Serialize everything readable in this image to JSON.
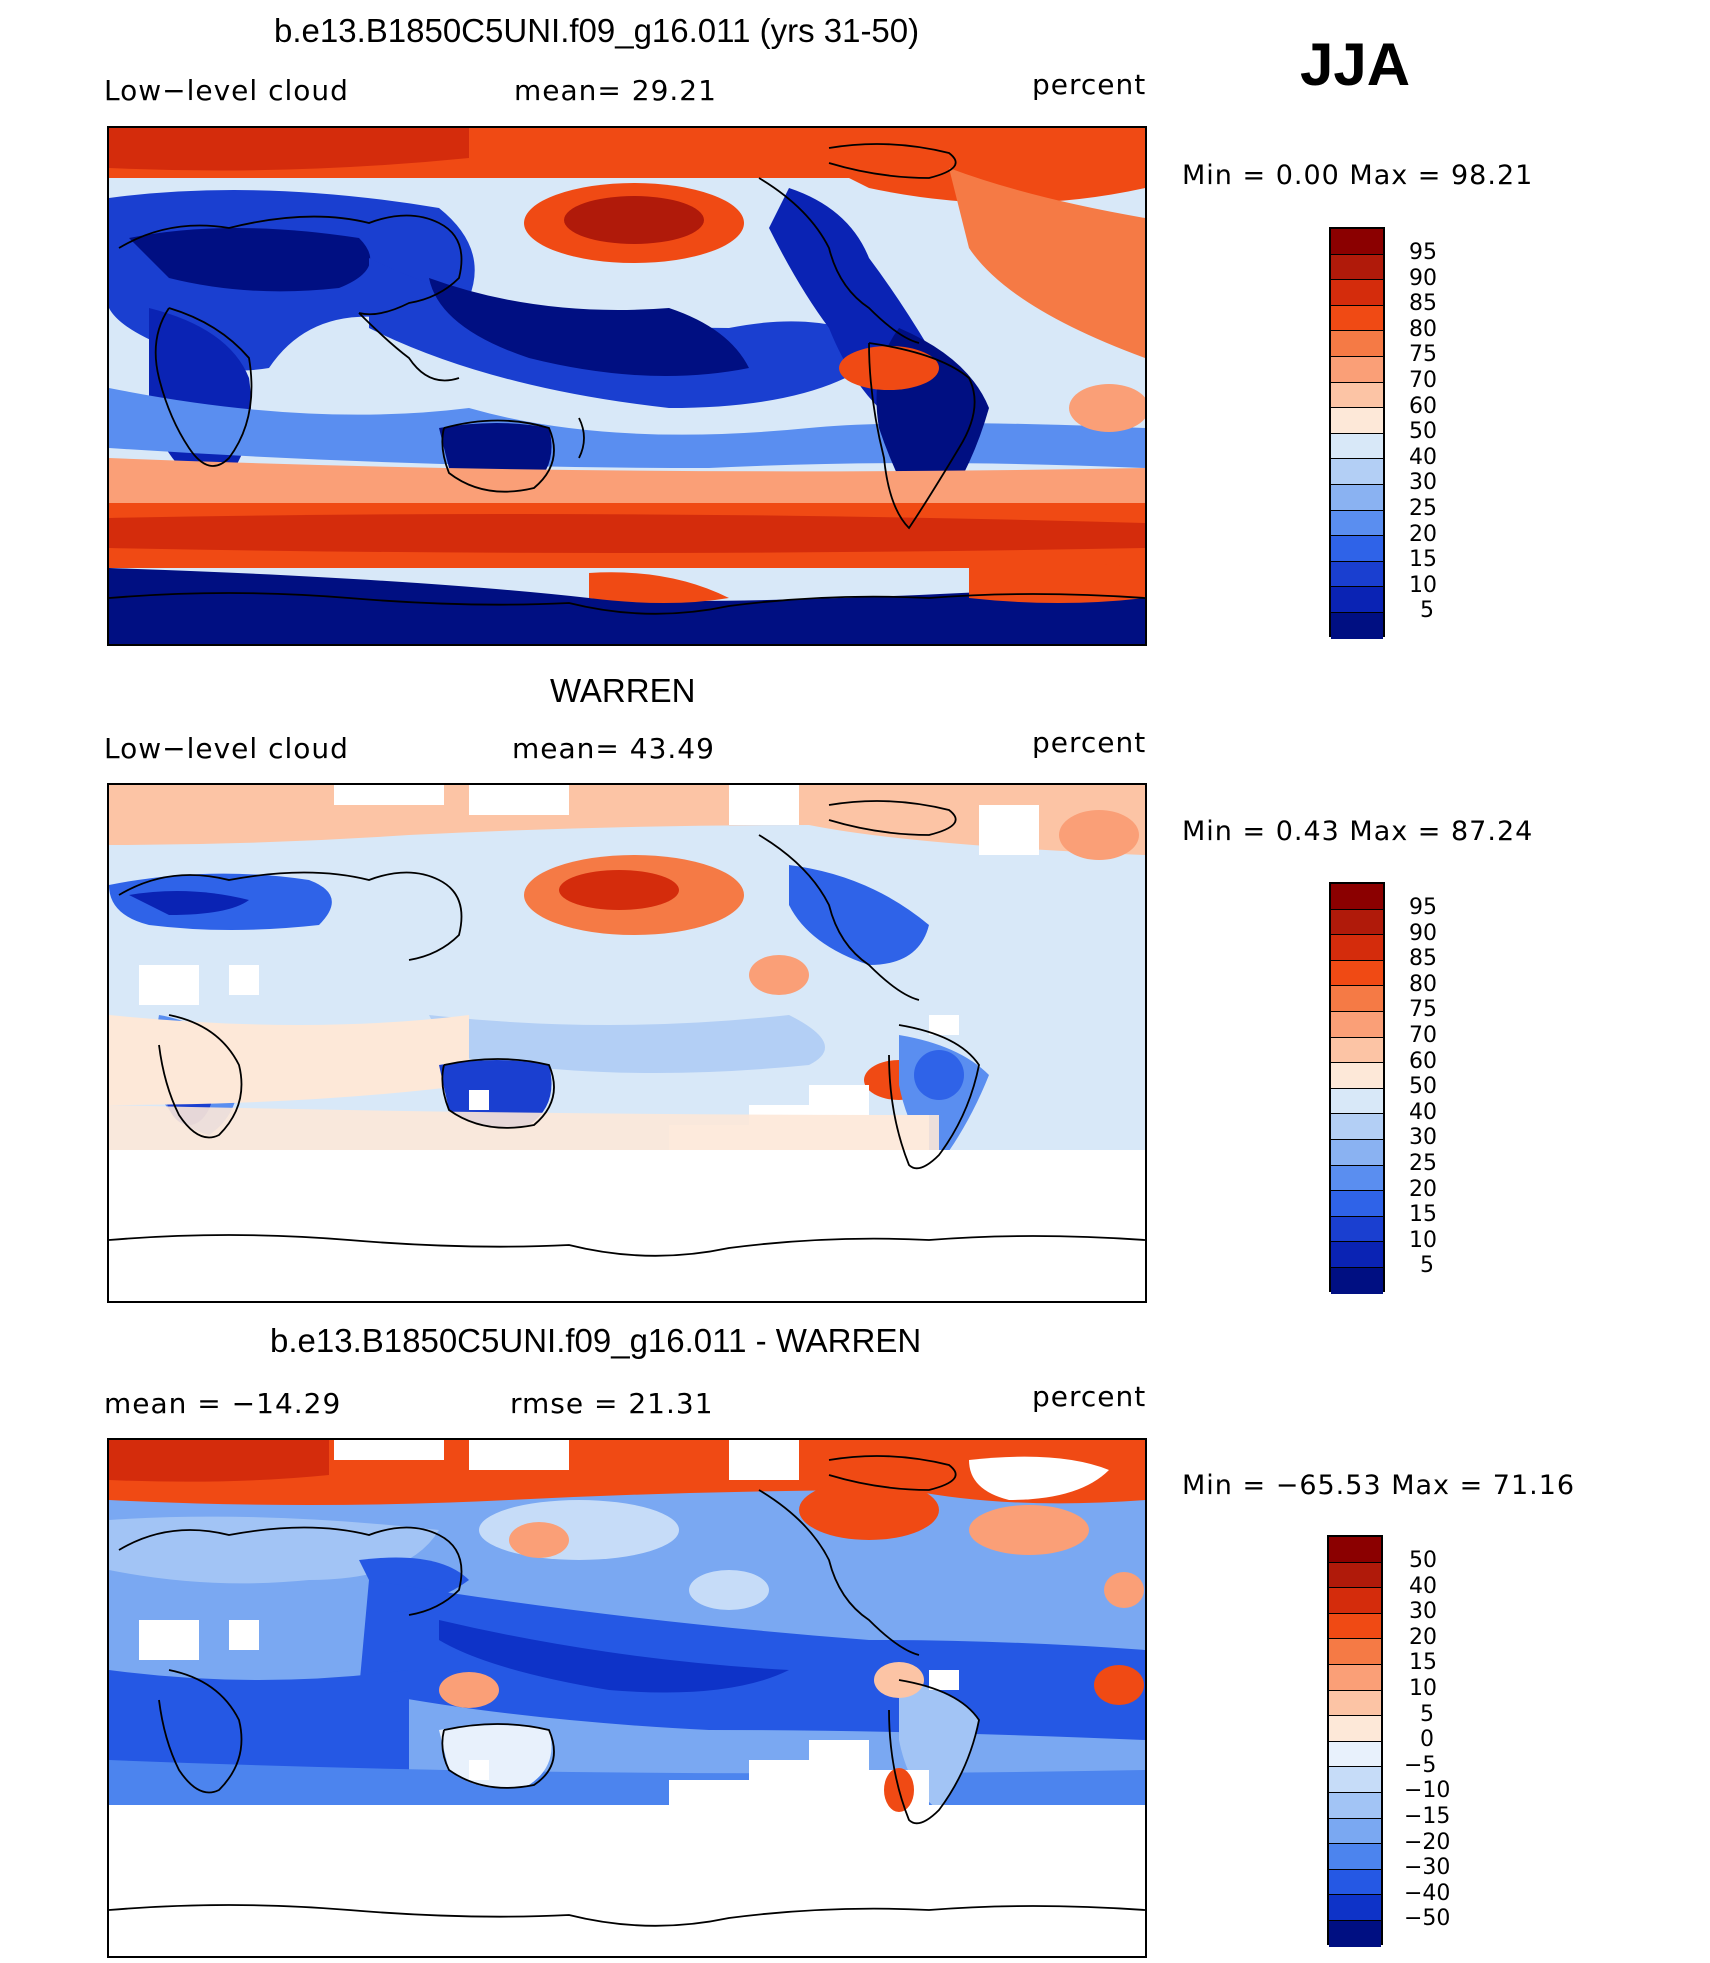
{
  "season": "JJA",
  "panels": [
    {
      "title": "b.e13.B1850C5UNI.f09_g16.011 (yrs 31-50)",
      "left_label": "Low−level cloud",
      "mid_label": "mean=   29.21",
      "units": "percent",
      "minmax": "Min  =     0.00  Max  =    98.21",
      "colorbar_labels": [
        "95",
        "90",
        "85",
        "80",
        "75",
        "70",
        "60",
        "50",
        "40",
        "30",
        "25",
        "20",
        "15",
        "10",
        "5"
      ]
    },
    {
      "title": "WARREN",
      "left_label": "Low−level cloud",
      "mid_label": "mean=   43.49",
      "units": "percent",
      "minmax": "Min  =     0.43  Max  =    87.24",
      "colorbar_labels": [
        "95",
        "90",
        "85",
        "80",
        "75",
        "70",
        "60",
        "50",
        "40",
        "30",
        "25",
        "20",
        "15",
        "10",
        "5"
      ]
    },
    {
      "title": "b.e13.B1850C5UNI.f09_g16.011 - WARREN",
      "left_label": "mean  =  −14.29",
      "mid_label": "rmse  =    21.31",
      "units": "percent",
      "minmax": "Min  =  −65.53  Max  =    71.16",
      "colorbar_labels": [
        "50",
        "40",
        "30",
        "20",
        "15",
        "10",
        "5",
        "0",
        "−5",
        "−10",
        "−15",
        "−20",
        "−30",
        "−40",
        "−50"
      ]
    }
  ],
  "colors": {
    "abs_scale": [
      "#8b0000",
      "#b01a0a",
      "#d42c0c",
      "#f04a14",
      "#f57a45",
      "#fa9f77",
      "#fcc4a5",
      "#fde8d8",
      "#d8e8f8",
      "#b3cff5",
      "#8ab2f2",
      "#5a8ef0",
      "#2f63e8",
      "#1a3fd0",
      "#0a23b4",
      "#000f82"
    ],
    "diff_scale": [
      "#8b0000",
      "#b01a0a",
      "#d42c0c",
      "#f04a14",
      "#f57a45",
      "#fa9f77",
      "#fcc4a5",
      "#fde8d8",
      "#e8f1fc",
      "#c6dcf8",
      "#a2c4f5",
      "#7aa8f2",
      "#4c84ee",
      "#2558e4",
      "#0e33c8",
      "#000f82"
    ]
  }
}
